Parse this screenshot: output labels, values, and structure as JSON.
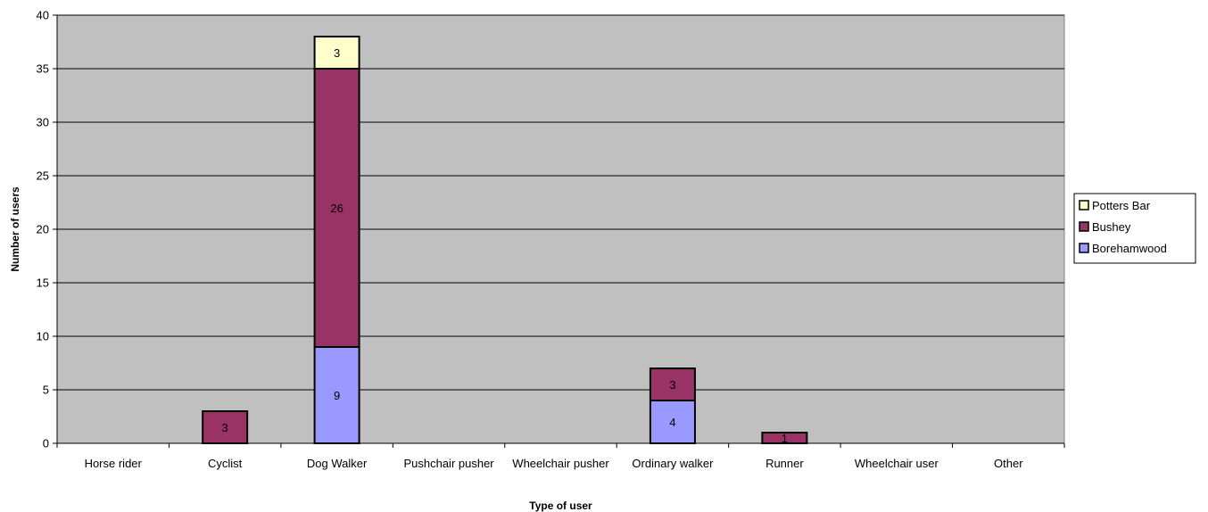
{
  "chart_data": {
    "type": "bar",
    "stacked": true,
    "categories": [
      "Horse rider",
      "Cyclist",
      "Dog Walker",
      "Pushchair pusher",
      "Wheelchair pusher",
      "Ordinary walker",
      "Runner",
      "Wheelchair user",
      "Other"
    ],
    "series": [
      {
        "name": "Borehamwood",
        "color": "#9999FF",
        "values": [
          0,
          0,
          9,
          0,
          0,
          4,
          0,
          0,
          0
        ],
        "labels": [
          "",
          "",
          "9",
          "",
          "",
          "4",
          "",
          "",
          ""
        ]
      },
      {
        "name": "Bushey",
        "color": "#993366",
        "values": [
          0,
          3,
          26,
          0,
          0,
          3,
          1,
          0,
          0
        ],
        "labels": [
          "",
          "3",
          "26",
          "",
          "",
          "3",
          "1",
          "",
          ""
        ]
      },
      {
        "name": "Potters Bar",
        "color": "#FFFFCC",
        "values": [
          0,
          0,
          3,
          0,
          0,
          0,
          0,
          0,
          0
        ],
        "labels": [
          "",
          "",
          "3",
          "",
          "",
          "",
          "",
          "",
          ""
        ]
      }
    ],
    "legend_order": [
      "Potters Bar",
      "Bushey",
      "Borehamwood"
    ],
    "legend_position": "right",
    "title": "",
    "xlabel": "Type of user",
    "ylabel": "Number of users",
    "ylim": [
      0,
      40
    ],
    "yticks": [
      "0",
      "5",
      "10",
      "15",
      "20",
      "25",
      "30",
      "35",
      "40"
    ],
    "grid": true,
    "plot_background": "#C0C0C0"
  }
}
